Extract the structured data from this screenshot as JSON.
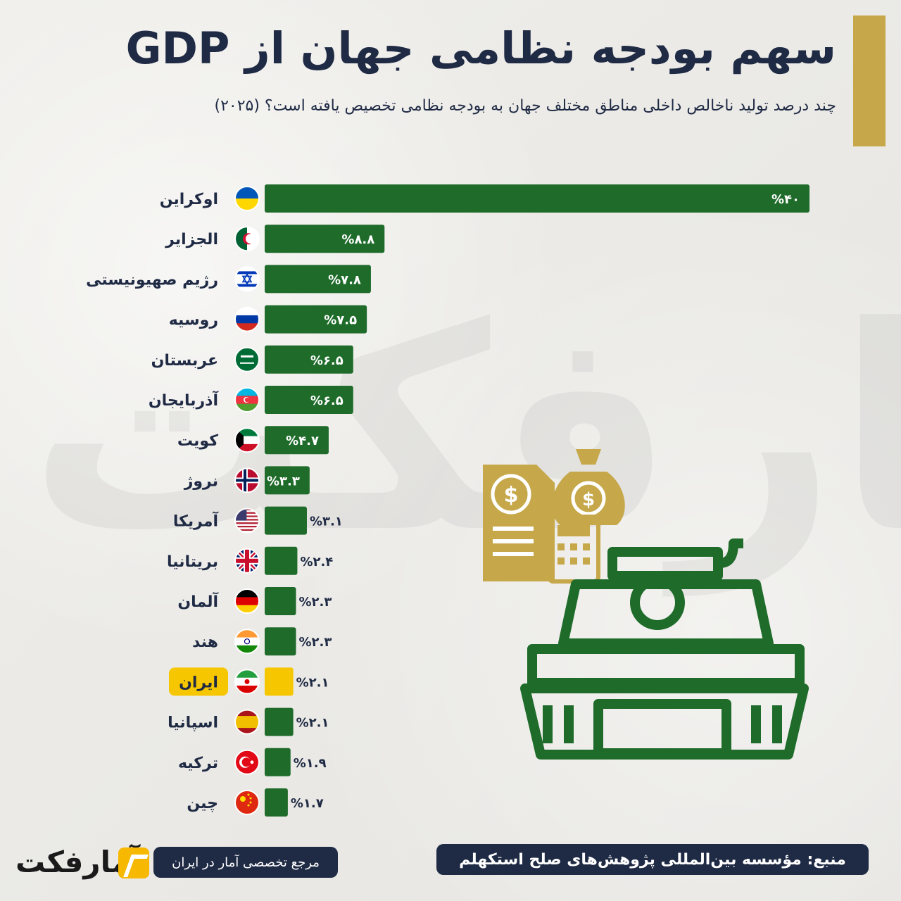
{
  "header": {
    "title": "سهم بودجه نظامی جهان از GDP",
    "subtitle": "چند درصد تولید ناخالص داخلی مناطق مختلف جهان به بودجه نظامی تخصیص یافته است؟ (۲۰۲۵)"
  },
  "watermark": "آمارفکت",
  "chart_data": {
    "type": "bar",
    "orientation": "horizontal",
    "categories": [
      "اوکراین",
      "الجزایر",
      "رژیم صهیونیستی",
      "روسیه",
      "عربستان",
      "آذربایجان",
      "کویت",
      "نروژ",
      "آمریکا",
      "بریتانیا",
      "آلمان",
      "هند",
      "ایران",
      "اسپانیا",
      "ترکیه",
      "چین"
    ],
    "values": [
      40,
      8.8,
      7.8,
      7.5,
      6.5,
      6.5,
      4.7,
      3.3,
      3.1,
      2.4,
      2.3,
      2.3,
      2.1,
      2.1,
      1.9,
      1.7
    ],
    "value_labels": [
      "%۴۰",
      "%۸.۸",
      "%۷.۸",
      "%۷.۵",
      "%۶.۵",
      "%۶.۵",
      "%۴.۷",
      "%۳.۳",
      "%۳.۱",
      "%۲.۴",
      "%۲.۳",
      "%۲.۳",
      "%۲.۱",
      "%۲.۱",
      "%۱.۹",
      "%۱.۷"
    ],
    "highlight": "ایران",
    "flags": [
      "ukraine-flag-icon",
      "algeria-flag-icon",
      "israel-flag-icon",
      "russia-flag-icon",
      "saudi-arabia-flag-icon",
      "azerbaijan-flag-icon",
      "kuwait-flag-icon",
      "norway-flag-icon",
      "usa-flag-icon",
      "uk-flag-icon",
      "germany-flag-icon",
      "india-flag-icon",
      "iran-flag-icon",
      "spain-flag-icon",
      "turkey-flag-icon",
      "china-flag-icon"
    ],
    "xlim": [
      0,
      40
    ],
    "grid": false,
    "legend": "none",
    "colors": {
      "bar": "#1e6b2a",
      "highlight": "#f6c600",
      "text": "#1f2a44"
    }
  },
  "footer": {
    "source": "منبع: مؤسسه بین‌المللی پژوهش‌های صلح استکهلم",
    "reference": "مرجع تخصصی آمار در ایران",
    "logo_text": "آمارفکت"
  },
  "colors": {
    "navy": "#1f2a44",
    "green": "#1e6b2a",
    "gold": "#c6a84a",
    "yellow": "#f6c600"
  }
}
